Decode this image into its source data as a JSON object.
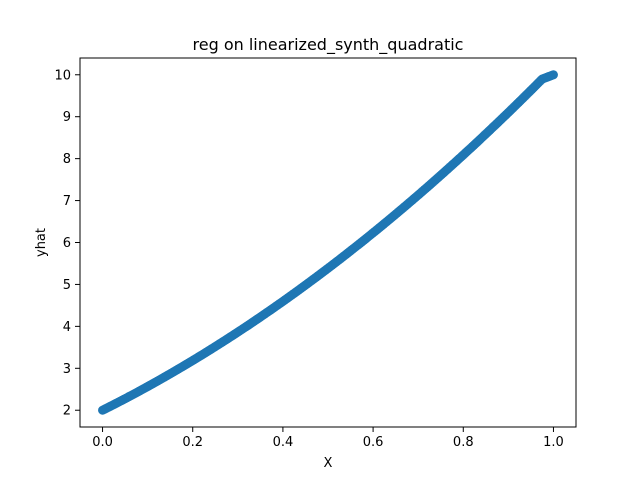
{
  "chart_data": {
    "type": "scatter",
    "title": "reg on linearized_synth_quadratic",
    "xlabel": "X",
    "ylabel": "yhat",
    "xlim": [
      -0.05,
      1.05
    ],
    "ylim": [
      1.6,
      10.4
    ],
    "xticks": [
      0.0,
      0.2,
      0.4,
      0.6,
      0.8,
      1.0
    ],
    "xtick_labels": [
      "0.0",
      "0.2",
      "0.4",
      "0.6",
      "0.8",
      "1.0"
    ],
    "yticks": [
      2,
      3,
      4,
      5,
      6,
      7,
      8,
      9,
      10
    ],
    "ytick_labels": [
      "2",
      "3",
      "4",
      "5",
      "6",
      "7",
      "8",
      "9",
      "10"
    ],
    "grid": false,
    "marker_color": "#1f77b4",
    "series": [
      {
        "x": [
          0.0,
          0.025,
          0.05,
          0.075,
          0.1,
          0.125,
          0.15,
          0.175,
          0.2,
          0.225,
          0.25,
          0.275,
          0.3,
          0.325,
          0.35,
          0.375,
          0.4,
          0.425,
          0.45,
          0.475,
          0.5,
          0.525,
          0.55,
          0.575,
          0.6,
          0.625,
          0.65,
          0.675,
          0.7,
          0.725,
          0.75,
          0.775,
          0.8,
          0.825,
          0.85,
          0.875,
          0.9,
          0.925,
          0.95,
          0.975,
          1.0
        ],
        "y": [
          2.0,
          2.136,
          2.275,
          2.418,
          2.565,
          2.715,
          2.869,
          3.026,
          3.186,
          3.35,
          3.518,
          3.689,
          3.863,
          4.041,
          4.223,
          4.408,
          4.596,
          4.788,
          4.984,
          5.183,
          5.385,
          5.591,
          5.801,
          6.014,
          6.23,
          6.45,
          6.674,
          6.901,
          7.131,
          7.365,
          7.603,
          7.844,
          8.088,
          8.336,
          8.588,
          8.843,
          9.101,
          9.363,
          9.629,
          9.898,
          10.0
        ]
      }
    ]
  }
}
